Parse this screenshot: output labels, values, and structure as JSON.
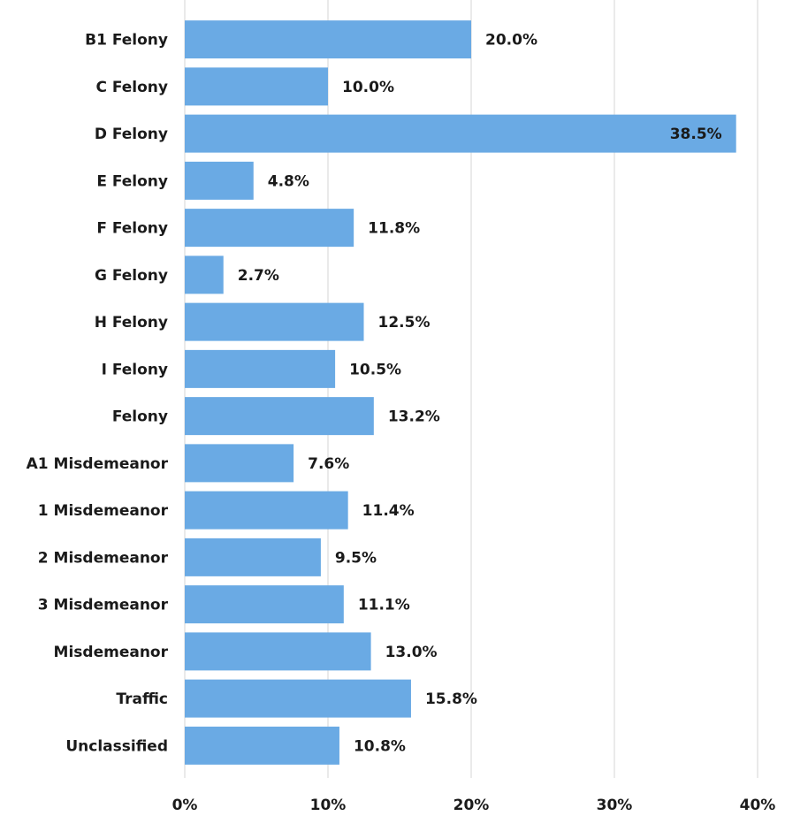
{
  "chart_data": {
    "type": "bar",
    "orientation": "horizontal",
    "categories": [
      "B1 Felony",
      "C Felony",
      "D Felony",
      "E Felony",
      "F Felony",
      "G Felony",
      "H Felony",
      "I Felony",
      "Felony",
      "A1 Misdemeanor",
      "1 Misdemeanor",
      "2 Misdemeanor",
      "3 Misdemeanor",
      "Misdemeanor",
      "Traffic",
      "Unclassified"
    ],
    "values": [
      20.0,
      10.0,
      38.5,
      4.8,
      11.8,
      2.7,
      12.5,
      10.5,
      13.2,
      7.6,
      11.4,
      9.5,
      11.1,
      13.0,
      15.8,
      10.8
    ],
    "value_labels": [
      "20.0%",
      "10.0%",
      "38.5%",
      "4.8%",
      "11.8%",
      "2.7%",
      "12.5%",
      "10.5%",
      "13.2%",
      "7.6%",
      "11.4%",
      "9.5%",
      "11.1%",
      "13.0%",
      "15.8%",
      "10.8%"
    ],
    "color": "#6aaae4",
    "xlim": [
      0,
      40
    ],
    "xticks": [
      {
        "value": 0,
        "label": "0%"
      },
      {
        "value": 10,
        "label": "10%"
      },
      {
        "value": 20,
        "label": "20%"
      },
      {
        "value": 30,
        "label": "30%"
      },
      {
        "value": 40,
        "label": "40%"
      }
    ],
    "grid": true
  }
}
